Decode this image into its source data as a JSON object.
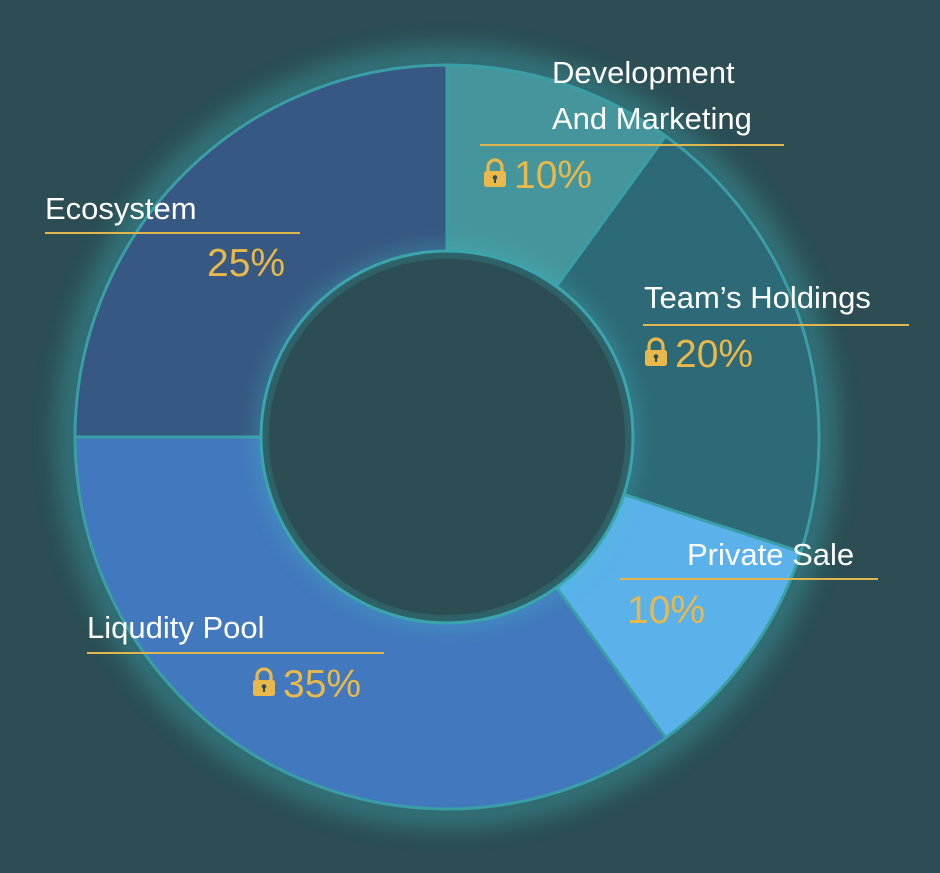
{
  "chart_data": {
    "type": "pie",
    "variant": "donut",
    "start_angle_deg": 0,
    "direction": "clockwise",
    "slices": [
      {
        "label_lines": [
          "Development",
          "And Marketing"
        ],
        "value": 10,
        "value_text": "10%",
        "locked": true,
        "color": "#45969c"
      },
      {
        "label_lines": [
          "Team’s Holdings"
        ],
        "value": 20,
        "value_text": "20%",
        "locked": true,
        "color": "#2e6977"
      },
      {
        "label_lines": [
          "Private Sale"
        ],
        "value": 10,
        "value_text": "10%",
        "locked": false,
        "color": "#5bb1ea"
      },
      {
        "label_lines": [
          "Liqudity Pool"
        ],
        "value": 35,
        "value_text": "35%",
        "locked": true,
        "color": "#4278bd"
      },
      {
        "label_lines": [
          "Ecosystem"
        ],
        "value": 25,
        "value_text": "25%",
        "locked": false,
        "color": "#375882"
      }
    ],
    "stroke_color": "#3a9ea6",
    "label_color": "#ffffff",
    "value_color": "#e8b94a",
    "underline_color": "#e1b64c",
    "background": "#2b4d53",
    "legend": "none"
  }
}
